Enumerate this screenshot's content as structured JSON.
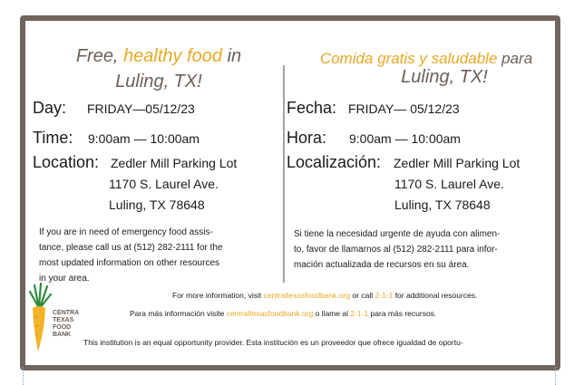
{
  "english": {
    "title_pre": "Free, ",
    "title_highlight": "healthy food",
    "title_post": " in",
    "title_line2": "Luling, TX!",
    "day_label": "Day:",
    "day_value": "FRIDAY—05/12/23",
    "time_label": "Time:",
    "time_value": "9:00am — 10:00am",
    "location_label": "Location:",
    "location_lines": [
      "Zedler Mill Parking Lot",
      "1170 S. Laurel Ave.",
      "Luling, TX 78648"
    ],
    "paragraph_lines": [
      "If you are in need of emergency food assis-",
      "tance, please call us at (512) 282-2111 for the",
      "most updated information on other resources",
      "in your area."
    ]
  },
  "spanish": {
    "title_highlight": "Comida gratis y saludable",
    "title_post": " para",
    "title_line2": "Luling, TX!",
    "day_label": "Fecha:",
    "day_value": "FRIDAY— 05/12/23",
    "time_label": "Hora:",
    "time_value": "9:00am — 10:00am",
    "location_label": "Localización:",
    "location_lines": [
      "Zedler Mill Parking Lot",
      "1170 S. Laurel Ave.",
      "Luling, TX 78648"
    ],
    "paragraph_lines": [
      "Si tiene la necesidad urgente de ayuda con alimen-",
      "to, favor de llamarnos al (512) 282-2111 para infor-",
      "mación actualizada de recursos en su área."
    ]
  },
  "footer": {
    "en_pre": "For more information, visit ",
    "en_link": "centraltexasfoodbank.org",
    "en_mid": " or call ",
    "en_phone": "2-1-1",
    "en_post": " for additional resources.",
    "es_pre": "Para más información visite ",
    "es_link": "centraltexasfoodbank.org",
    "es_mid": " o llame al ",
    "es_phone": "2-1-1",
    "es_post": " para más recursos.",
    "equal_opportunity": "This institution is an equal opportunity provider. Esta institución es un proveedor que ofrece igualdad de oportu-"
  },
  "logo": {
    "text_lines": [
      "CENTRA",
      "TEXAS",
      "FOOD",
      "BANK"
    ],
    "icon": "carrot-icon"
  },
  "colors": {
    "border": "#72655e",
    "accent": "#e8a825",
    "title": "#6b5f58"
  }
}
